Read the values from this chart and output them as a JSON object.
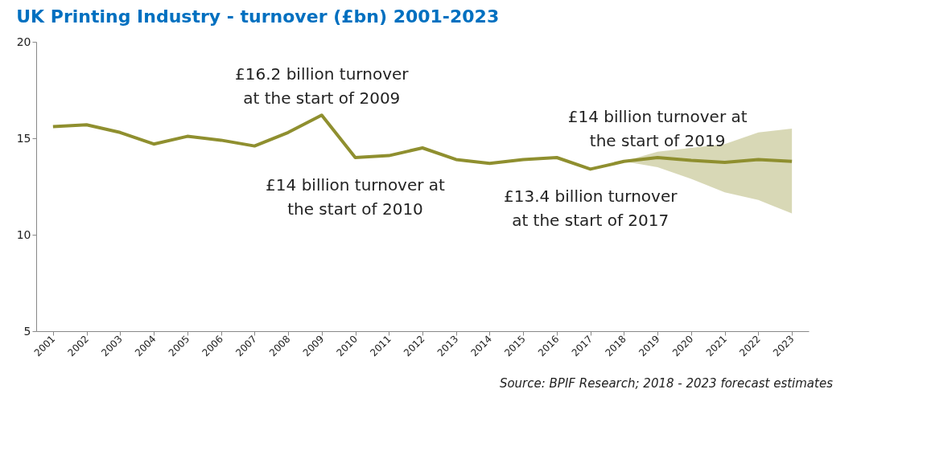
{
  "chart_data": {
    "type": "line",
    "title": "UK Printing Industry - turnover (£bn) 2001-2023",
    "categories": [
      "2001",
      "2002",
      "2003",
      "2004",
      "2005",
      "2006",
      "2007",
      "2008",
      "2009",
      "2010",
      "2011",
      "2012",
      "2013",
      "2014",
      "2015",
      "2016",
      "2017",
      "2018",
      "2019",
      "2020",
      "2021",
      "2022",
      "2023"
    ],
    "series": [
      {
        "color": "#8f8f2f",
        "values": [
          15.6,
          15.7,
          15.3,
          14.7,
          15.1,
          14.9,
          14.6,
          15.3,
          16.2,
          14.0,
          14.1,
          14.5,
          13.9,
          13.7,
          13.9,
          14.0,
          13.4,
          13.8,
          14.0,
          13.85,
          13.75,
          13.9,
          13.8
        ],
        "lower": [
          null,
          null,
          null,
          null,
          null,
          null,
          null,
          null,
          null,
          null,
          null,
          null,
          null,
          null,
          null,
          null,
          null,
          13.8,
          13.5,
          12.9,
          12.2,
          11.8,
          11.1
        ],
        "upper": [
          null,
          null,
          null,
          null,
          null,
          null,
          null,
          null,
          null,
          null,
          null,
          null,
          null,
          null,
          null,
          null,
          null,
          13.8,
          14.3,
          14.5,
          14.7,
          15.3,
          15.5
        ]
      }
    ],
    "ylim": [
      5,
      20
    ],
    "yticks": [
      5,
      10,
      15,
      20
    ],
    "grid": false,
    "marker": "none",
    "line_style": "solid",
    "annotations": [
      {
        "text": "£16.2 billion turnover\nat the start of 2009",
        "x": "2009",
        "y": 16.2
      },
      {
        "text": "£14 billion turnover at\nthe start of 2010",
        "x": "2010",
        "y": 14.0
      },
      {
        "text": "£13.4 billion turnover\nat the start of 2017",
        "x": "2017",
        "y": 13.4
      },
      {
        "text": "£14 billion turnover at\nthe start of 2019",
        "x": "2019",
        "y": 14.0
      },
      "Source: BPIF Research; 2018 - 2023 forecast estimates"
    ]
  }
}
